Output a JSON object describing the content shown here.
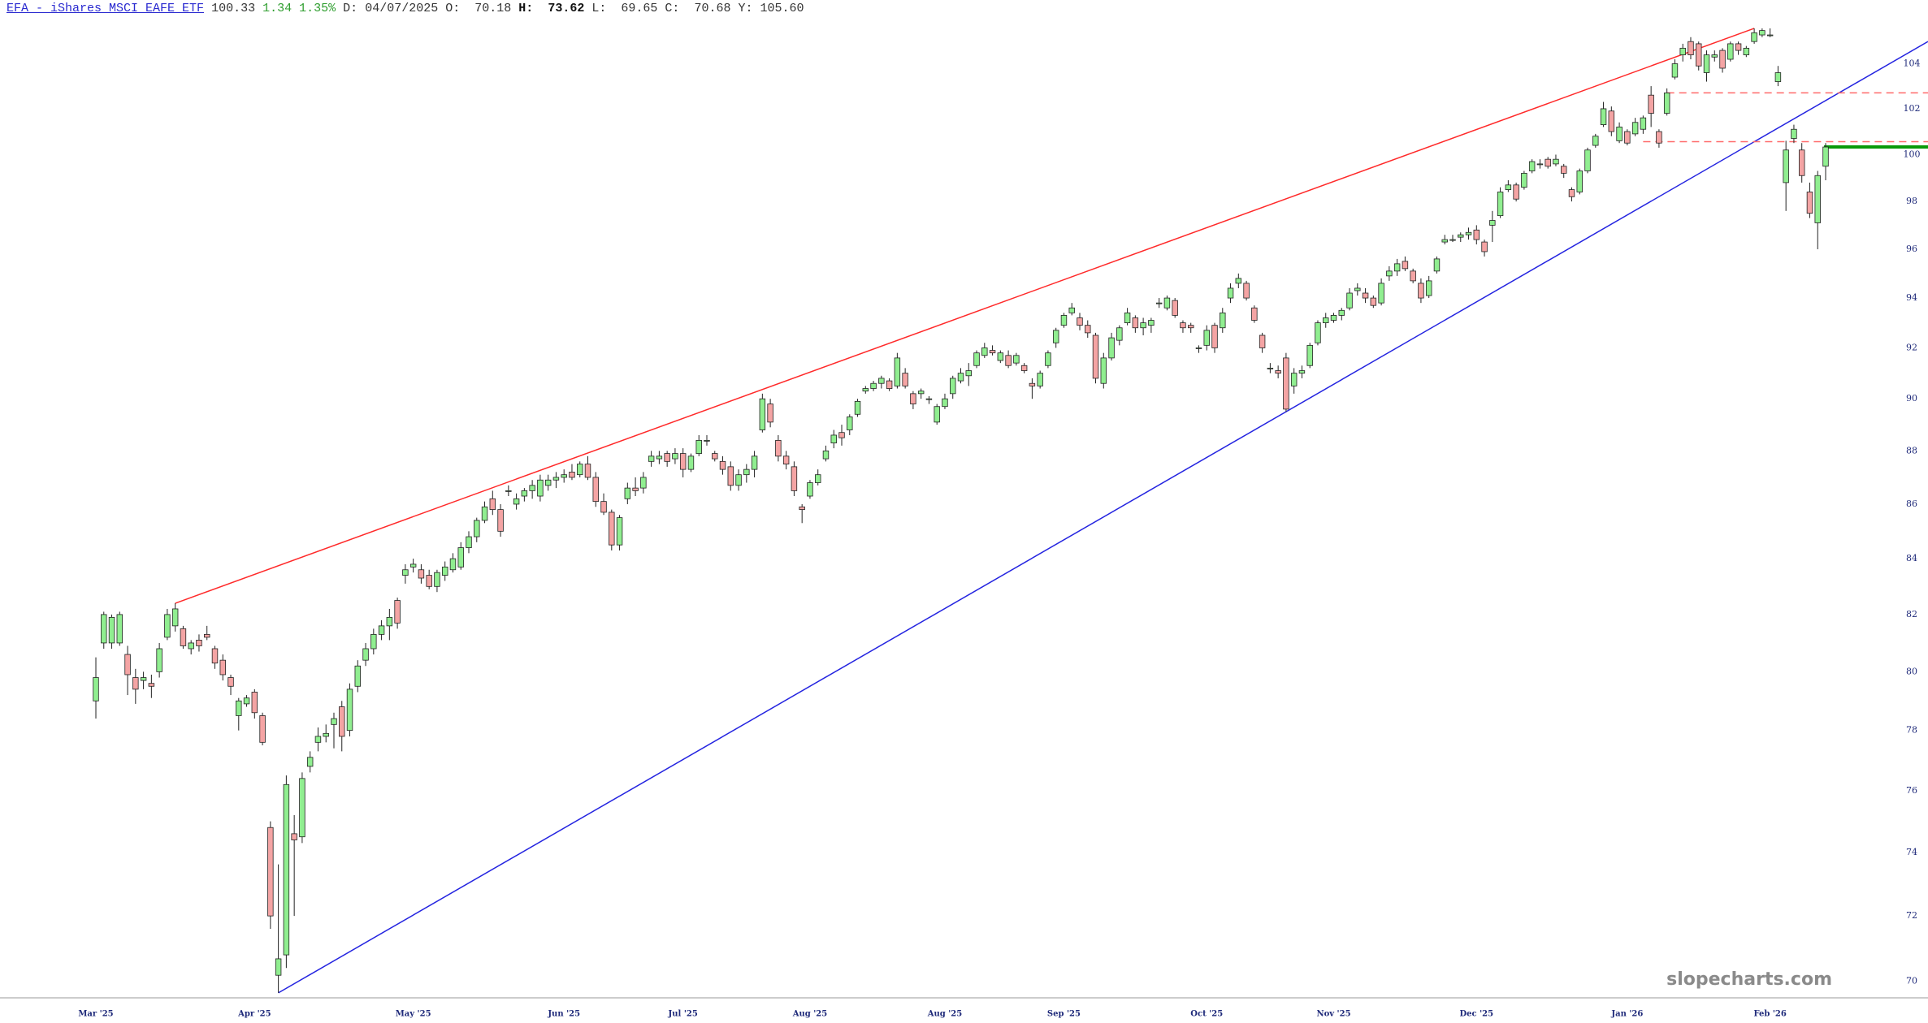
{
  "header": {
    "title": "EFA - iShares MSCI EAFE ETF",
    "change": 1.34,
    "change_pct": "1.35%",
    "date_label": "D:",
    "date": "04/07/2025",
    "open_label": "O:",
    "high_label": "H:",
    "low_label": "L:",
    "close_label": "C:",
    "y_label": "Y:",
    "y_value": "105.60"
  },
  "watermark": "slopecharts.com",
  "chart_data": {
    "type": "candlestick",
    "log_scale": true,
    "grid": false,
    "up_color": "#90ee90",
    "down_color": "#f4a4a4",
    "ylim": [
      69.5,
      106.9
    ],
    "yticks": [
      70,
      72,
      74,
      76,
      78,
      80,
      82,
      84,
      86,
      88,
      90,
      92,
      94,
      96,
      98,
      100,
      102,
      104
    ],
    "categories": [
      "Mar '25",
      null,
      null,
      null,
      null,
      null,
      null,
      null,
      null,
      null,
      null,
      null,
      null,
      null,
      null,
      null,
      null,
      null,
      null,
      null,
      "Apr '25",
      null,
      null,
      null,
      null,
      null,
      null,
      null,
      null,
      null,
      null,
      null,
      null,
      null,
      null,
      null,
      null,
      null,
      null,
      null,
      "May '25",
      null,
      null,
      null,
      null,
      null,
      null,
      null,
      null,
      null,
      null,
      null,
      null,
      null,
      null,
      null,
      null,
      null,
      null,
      "Jun '25",
      null,
      null,
      null,
      null,
      null,
      null,
      null,
      null,
      null,
      null,
      null,
      null,
      null,
      null,
      "Jul '25",
      null,
      null,
      null,
      null,
      null,
      null,
      null,
      null,
      null,
      null,
      null,
      null,
      null,
      null,
      null,
      "Aug '25",
      null,
      null,
      null,
      null,
      null,
      null,
      null,
      null,
      null,
      null,
      null,
      null,
      null,
      null,
      null,
      null,
      "Aug '25",
      null,
      null,
      null,
      null,
      null,
      null,
      null,
      null,
      null,
      null,
      null,
      null,
      null,
      null,
      "Sep '25",
      null,
      null,
      null,
      null,
      null,
      null,
      null,
      null,
      null,
      null,
      null,
      null,
      null,
      null,
      null,
      null,
      null,
      "Oct '25",
      null,
      null,
      null,
      null,
      null,
      null,
      null,
      null,
      null,
      null,
      null,
      null,
      null,
      null,
      null,
      "Nov '25",
      null,
      null,
      null,
      null,
      null,
      null,
      null,
      null,
      null,
      null,
      null,
      null,
      null,
      null,
      null,
      null,
      null,
      "Dec '25",
      null,
      null,
      null,
      null,
      null,
      null,
      null,
      null,
      null,
      null,
      null,
      null,
      null,
      null,
      null,
      null,
      null,
      null,
      "Jan '26",
      null,
      null,
      null,
      null,
      null,
      null,
      null,
      null,
      null,
      null,
      null,
      null,
      null,
      null,
      null,
      null,
      null,
      "Feb '26",
      null,
      null,
      null,
      null,
      null,
      null,
      null
    ],
    "open": [
      79.0,
      81.0,
      81.0,
      81.0,
      80.6,
      79.8,
      79.7,
      79.6,
      80.0,
      81.2,
      81.6,
      81.5,
      80.8,
      81.1,
      81.3,
      80.8,
      80.4,
      79.8,
      78.5,
      78.9,
      79.3,
      78.5,
      74.8,
      70.18,
      70.8,
      74.6,
      74.5,
      76.8,
      77.6,
      77.8,
      78.2,
      78.8,
      78.0,
      79.5,
      80.4,
      80.8,
      81.3,
      81.6,
      82.5,
      83.4,
      83.7,
      83.6,
      83.4,
      83.0,
      83.4,
      83.6,
      83.7,
      84.4,
      84.8,
      85.4,
      86.2,
      85.8,
      86.5,
      86.0,
      86.3,
      86.5,
      86.3,
      86.7,
      86.9,
      87.0,
      87.2,
      87.1,
      87.5,
      87.0,
      86.1,
      85.7,
      84.5,
      86.2,
      86.6,
      86.6,
      87.6,
      87.7,
      87.9,
      87.7,
      87.9,
      87.3,
      87.9,
      88.4,
      87.9,
      87.6,
      87.4,
      86.7,
      87.1,
      87.3,
      88.8,
      89.8,
      88.4,
      87.8,
      87.4,
      85.9,
      86.3,
      86.8,
      87.7,
      88.3,
      88.7,
      88.8,
      89.4,
      90.3,
      90.4,
      90.6,
      90.7,
      90.5,
      91.0,
      90.2,
      90.2,
      90.0,
      89.1,
      89.7,
      90.2,
      90.7,
      90.9,
      91.3,
      91.7,
      91.9,
      91.5,
      91.7,
      91.4,
      91.3,
      90.6,
      90.5,
      91.3,
      92.2,
      92.9,
      93.4,
      93.2,
      92.9,
      92.5,
      90.6,
      91.6,
      92.3,
      93.0,
      93.2,
      92.8,
      92.9,
      93.8,
      93.6,
      93.9,
      93.0,
      92.9,
      92.0,
      92.1,
      92.9,
      92.8,
      94.0,
      94.6,
      94.6,
      93.6,
      92.5,
      91.2,
      91.1,
      91.6,
      90.5,
      91.0,
      91.3,
      92.2,
      93.0,
      93.1,
      93.3,
      93.6,
      94.3,
      94.2,
      94.0,
      93.8,
      94.9,
      95.1,
      95.5,
      95.1,
      94.6,
      94.1,
      95.1,
      96.3,
      96.4,
      96.5,
      96.6,
      96.8,
      96.3,
      97.0,
      97.4,
      98.5,
      98.7,
      98.6,
      99.3,
      99.6,
      99.8,
      99.6,
      99.5,
      98.5,
      98.4,
      99.3,
      100.4,
      101.3,
      101.9,
      100.6,
      101.0,
      100.9,
      101.1,
      102.6,
      101.0,
      101.8,
      103.4,
      104.4,
      105.0,
      104.9,
      103.6,
      104.3,
      104.6,
      104.2,
      104.9,
      104.4,
      105.0,
      105.3,
      105.3,
      103.2,
      98.8,
      100.7,
      100.2,
      98.4,
      97.1,
      99.5
    ],
    "high": [
      80.5,
      82.1,
      82.0,
      82.1,
      80.9,
      80.1,
      80.0,
      79.9,
      81.0,
      82.2,
      82.4,
      81.6,
      81.1,
      81.3,
      81.6,
      80.9,
      80.6,
      79.9,
      79.1,
      79.2,
      79.4,
      78.6,
      75.0,
      73.62,
      76.5,
      75.2,
      76.6,
      77.3,
      78.1,
      78.2,
      78.6,
      79.0,
      79.6,
      80.4,
      81.0,
      81.5,
      81.8,
      82.2,
      82.6,
      83.8,
      84.0,
      83.8,
      83.6,
      83.6,
      83.9,
      84.2,
      84.6,
      85.0,
      85.5,
      86.1,
      86.5,
      86.0,
      86.7,
      86.4,
      86.6,
      86.9,
      87.1,
      87.1,
      87.2,
      87.3,
      87.5,
      87.6,
      87.8,
      87.2,
      86.4,
      85.8,
      85.6,
      86.8,
      87.0,
      87.2,
      88.0,
      88.0,
      88.0,
      88.1,
      88.1,
      87.9,
      88.6,
      88.6,
      88.0,
      87.8,
      87.6,
      87.3,
      87.5,
      88.0,
      90.2,
      90.0,
      88.6,
      88.0,
      87.6,
      86.0,
      86.9,
      87.3,
      88.2,
      88.8,
      89.0,
      89.4,
      90.0,
      90.5,
      90.7,
      90.9,
      90.8,
      91.8,
      91.2,
      90.3,
      90.4,
      90.1,
      89.8,
      90.2,
      90.9,
      91.2,
      91.4,
      91.9,
      92.2,
      92.1,
      91.9,
      91.9,
      91.8,
      91.4,
      90.8,
      91.1,
      91.9,
      92.8,
      93.4,
      93.8,
      93.4,
      93.1,
      92.6,
      91.8,
      92.6,
      92.9,
      93.6,
      93.3,
      93.2,
      93.2,
      94.0,
      94.1,
      94.0,
      93.1,
      93.0,
      92.1,
      92.9,
      93.0,
      93.6,
      94.6,
      95.0,
      94.7,
      93.7,
      92.6,
      91.4,
      91.3,
      91.8,
      91.2,
      91.3,
      92.2,
      93.1,
      93.4,
      93.4,
      93.6,
      94.4,
      94.6,
      94.4,
      94.1,
      94.8,
      95.3,
      95.6,
      95.7,
      95.2,
      94.8,
      94.9,
      95.7,
      96.6,
      96.6,
      96.7,
      96.9,
      97.0,
      96.4,
      97.6,
      98.6,
      98.9,
      98.8,
      99.3,
      99.8,
      99.8,
      99.9,
      100.0,
      99.6,
      98.6,
      99.4,
      100.3,
      100.9,
      102.3,
      102.1,
      101.4,
      101.1,
      101.6,
      101.7,
      103.0,
      101.1,
      102.9,
      104.2,
      104.9,
      105.2,
      105.0,
      104.6,
      104.6,
      104.7,
      105.0,
      105.0,
      104.8,
      105.6,
      105.6,
      105.6,
      103.9,
      100.6,
      101.3,
      100.5,
      98.8,
      99.3,
      100.5
    ],
    "low": [
      78.4,
      80.8,
      80.8,
      80.9,
      79.2,
      78.9,
      79.4,
      79.1,
      79.8,
      81.1,
      81.4,
      80.8,
      80.6,
      80.7,
      81.1,
      80.1,
      79.7,
      79.2,
      78.0,
      78.8,
      78.4,
      77.5,
      71.6,
      69.65,
      70.4,
      72.0,
      74.3,
      76.6,
      77.3,
      77.6,
      77.4,
      77.3,
      77.8,
      79.3,
      80.2,
      80.6,
      81.1,
      81.1,
      81.5,
      83.1,
      83.5,
      83.1,
      82.9,
      82.8,
      83.2,
      83.5,
      83.6,
      84.2,
      84.6,
      85.3,
      85.6,
      84.8,
      86.3,
      85.8,
      86.1,
      86.2,
      86.1,
      86.5,
      86.6,
      86.8,
      86.9,
      87.0,
      86.9,
      85.9,
      85.6,
      84.3,
      84.3,
      86.0,
      86.3,
      86.4,
      87.4,
      87.5,
      87.4,
      87.5,
      87.0,
      87.2,
      87.8,
      88.2,
      87.6,
      87.1,
      86.5,
      86.5,
      86.8,
      87.0,
      88.7,
      88.9,
      87.6,
      87.3,
      86.3,
      85.3,
      86.2,
      86.7,
      87.6,
      88.1,
      88.2,
      88.6,
      89.3,
      90.2,
      90.3,
      90.4,
      90.3,
      90.4,
      90.4,
      89.6,
      90.0,
      89.8,
      89.0,
      89.6,
      90.0,
      90.6,
      90.5,
      91.2,
      91.6,
      91.7,
      91.4,
      91.2,
      91.3,
      91.0,
      90.0,
      90.4,
      91.2,
      92.0,
      92.8,
      93.3,
      92.7,
      92.4,
      90.6,
      90.4,
      91.5,
      92.1,
      92.9,
      92.6,
      92.5,
      92.6,
      93.6,
      93.5,
      93.2,
      92.6,
      92.6,
      91.8,
      91.9,
      91.8,
      92.6,
      93.8,
      94.4,
      93.9,
      93.0,
      91.8,
      91.0,
      90.8,
      89.5,
      90.2,
      90.8,
      91.2,
      92.1,
      92.8,
      93.0,
      93.1,
      93.5,
      94.1,
      93.8,
      93.6,
      93.7,
      94.7,
      94.9,
      95.1,
      94.6,
      93.8,
      94.0,
      95.0,
      96.2,
      96.3,
      96.3,
      96.4,
      96.2,
      95.7,
      96.3,
      97.3,
      98.4,
      98.0,
      98.5,
      99.2,
      99.4,
      99.4,
      99.5,
      99.0,
      98.0,
      98.3,
      99.2,
      100.3,
      101.2,
      100.8,
      100.5,
      100.4,
      100.8,
      100.9,
      101.2,
      100.3,
      101.7,
      103.3,
      104.1,
      104.2,
      103.7,
      103.2,
      104.1,
      103.6,
      104.1,
      104.4,
      104.3,
      104.9,
      105.2,
      105.2,
      103.0,
      97.6,
      100.5,
      98.8,
      97.3,
      96.0,
      98.9
    ],
    "close": [
      79.8,
      82.0,
      81.9,
      82.0,
      79.9,
      79.4,
      79.8,
      79.5,
      80.8,
      82.0,
      82.2,
      80.9,
      81.0,
      80.9,
      81.2,
      80.3,
      79.9,
      79.5,
      79.0,
      79.1,
      78.6,
      77.6,
      72.0,
      70.68,
      76.2,
      74.4,
      76.4,
      77.1,
      77.8,
      77.9,
      78.4,
      77.8,
      79.4,
      80.2,
      80.8,
      81.3,
      81.6,
      81.9,
      81.7,
      83.6,
      83.8,
      83.3,
      83.0,
      83.5,
      83.7,
      84.0,
      84.4,
      84.8,
      85.4,
      85.9,
      85.8,
      85.0,
      86.5,
      86.2,
      86.5,
      86.7,
      86.9,
      86.9,
      87.0,
      87.1,
      87.0,
      87.5,
      87.0,
      86.1,
      85.7,
      84.5,
      85.5,
      86.6,
      86.5,
      87.0,
      87.8,
      87.8,
      87.6,
      87.9,
      87.3,
      87.8,
      88.4,
      88.4,
      87.7,
      87.3,
      86.7,
      87.1,
      87.3,
      87.8,
      90.0,
      89.1,
      87.8,
      87.5,
      86.5,
      85.8,
      86.8,
      87.1,
      88.0,
      88.6,
      88.5,
      89.3,
      89.9,
      90.4,
      90.6,
      90.8,
      90.4,
      91.6,
      90.5,
      89.8,
      90.3,
      90.0,
      89.7,
      90.0,
      90.8,
      91.0,
      91.1,
      91.8,
      92.0,
      91.8,
      91.8,
      91.3,
      91.7,
      91.1,
      90.5,
      91.0,
      91.8,
      92.7,
      93.3,
      93.6,
      92.9,
      92.6,
      90.8,
      91.6,
      92.4,
      92.8,
      93.4,
      92.8,
      93.0,
      93.1,
      93.8,
      94.0,
      93.3,
      92.8,
      92.8,
      92.0,
      92.7,
      92.0,
      93.4,
      94.4,
      94.8,
      94.0,
      93.1,
      92.0,
      91.2,
      91.0,
      89.6,
      91.0,
      91.1,
      92.1,
      93.0,
      93.2,
      93.3,
      93.5,
      94.2,
      94.4,
      94.0,
      93.7,
      94.6,
      95.1,
      95.4,
      95.2,
      94.7,
      94.0,
      94.7,
      95.6,
      96.4,
      96.4,
      96.6,
      96.7,
      96.4,
      95.9,
      97.2,
      98.4,
      98.7,
      98.1,
      99.2,
      99.7,
      99.6,
      99.5,
      99.8,
      99.2,
      98.2,
      99.3,
      100.2,
      100.8,
      102.0,
      101.0,
      101.2,
      100.5,
      101.4,
      101.6,
      101.8,
      100.5,
      102.7,
      104.0,
      104.7,
      104.4,
      103.9,
      104.4,
      104.4,
      103.8,
      104.9,
      104.6,
      104.7,
      105.4,
      105.5,
      105.3,
      103.6,
      100.2,
      101.1,
      99.1,
      97.5,
      99.1,
      100.33
    ],
    "trendlines": [
      {
        "color": "#ff2a2a",
        "x": [
          10,
          209
        ],
        "y": [
          82.4,
          105.6
        ],
        "extend": false
      },
      {
        "color": "#2424e0",
        "x": [
          23,
          150
        ],
        "y": [
          69.65,
          89.5
        ],
        "extend": true
      }
    ],
    "levels": [
      {
        "value": 102.7,
        "start": 198,
        "color": "#ff6a6a",
        "style": "dashed"
      },
      {
        "value": 100.56,
        "start": 195,
        "color": "#ff6a6a",
        "style": "dashed"
      },
      {
        "value": 100.33,
        "start": 218,
        "color": "#0a9a0a",
        "style": "bold"
      }
    ]
  }
}
